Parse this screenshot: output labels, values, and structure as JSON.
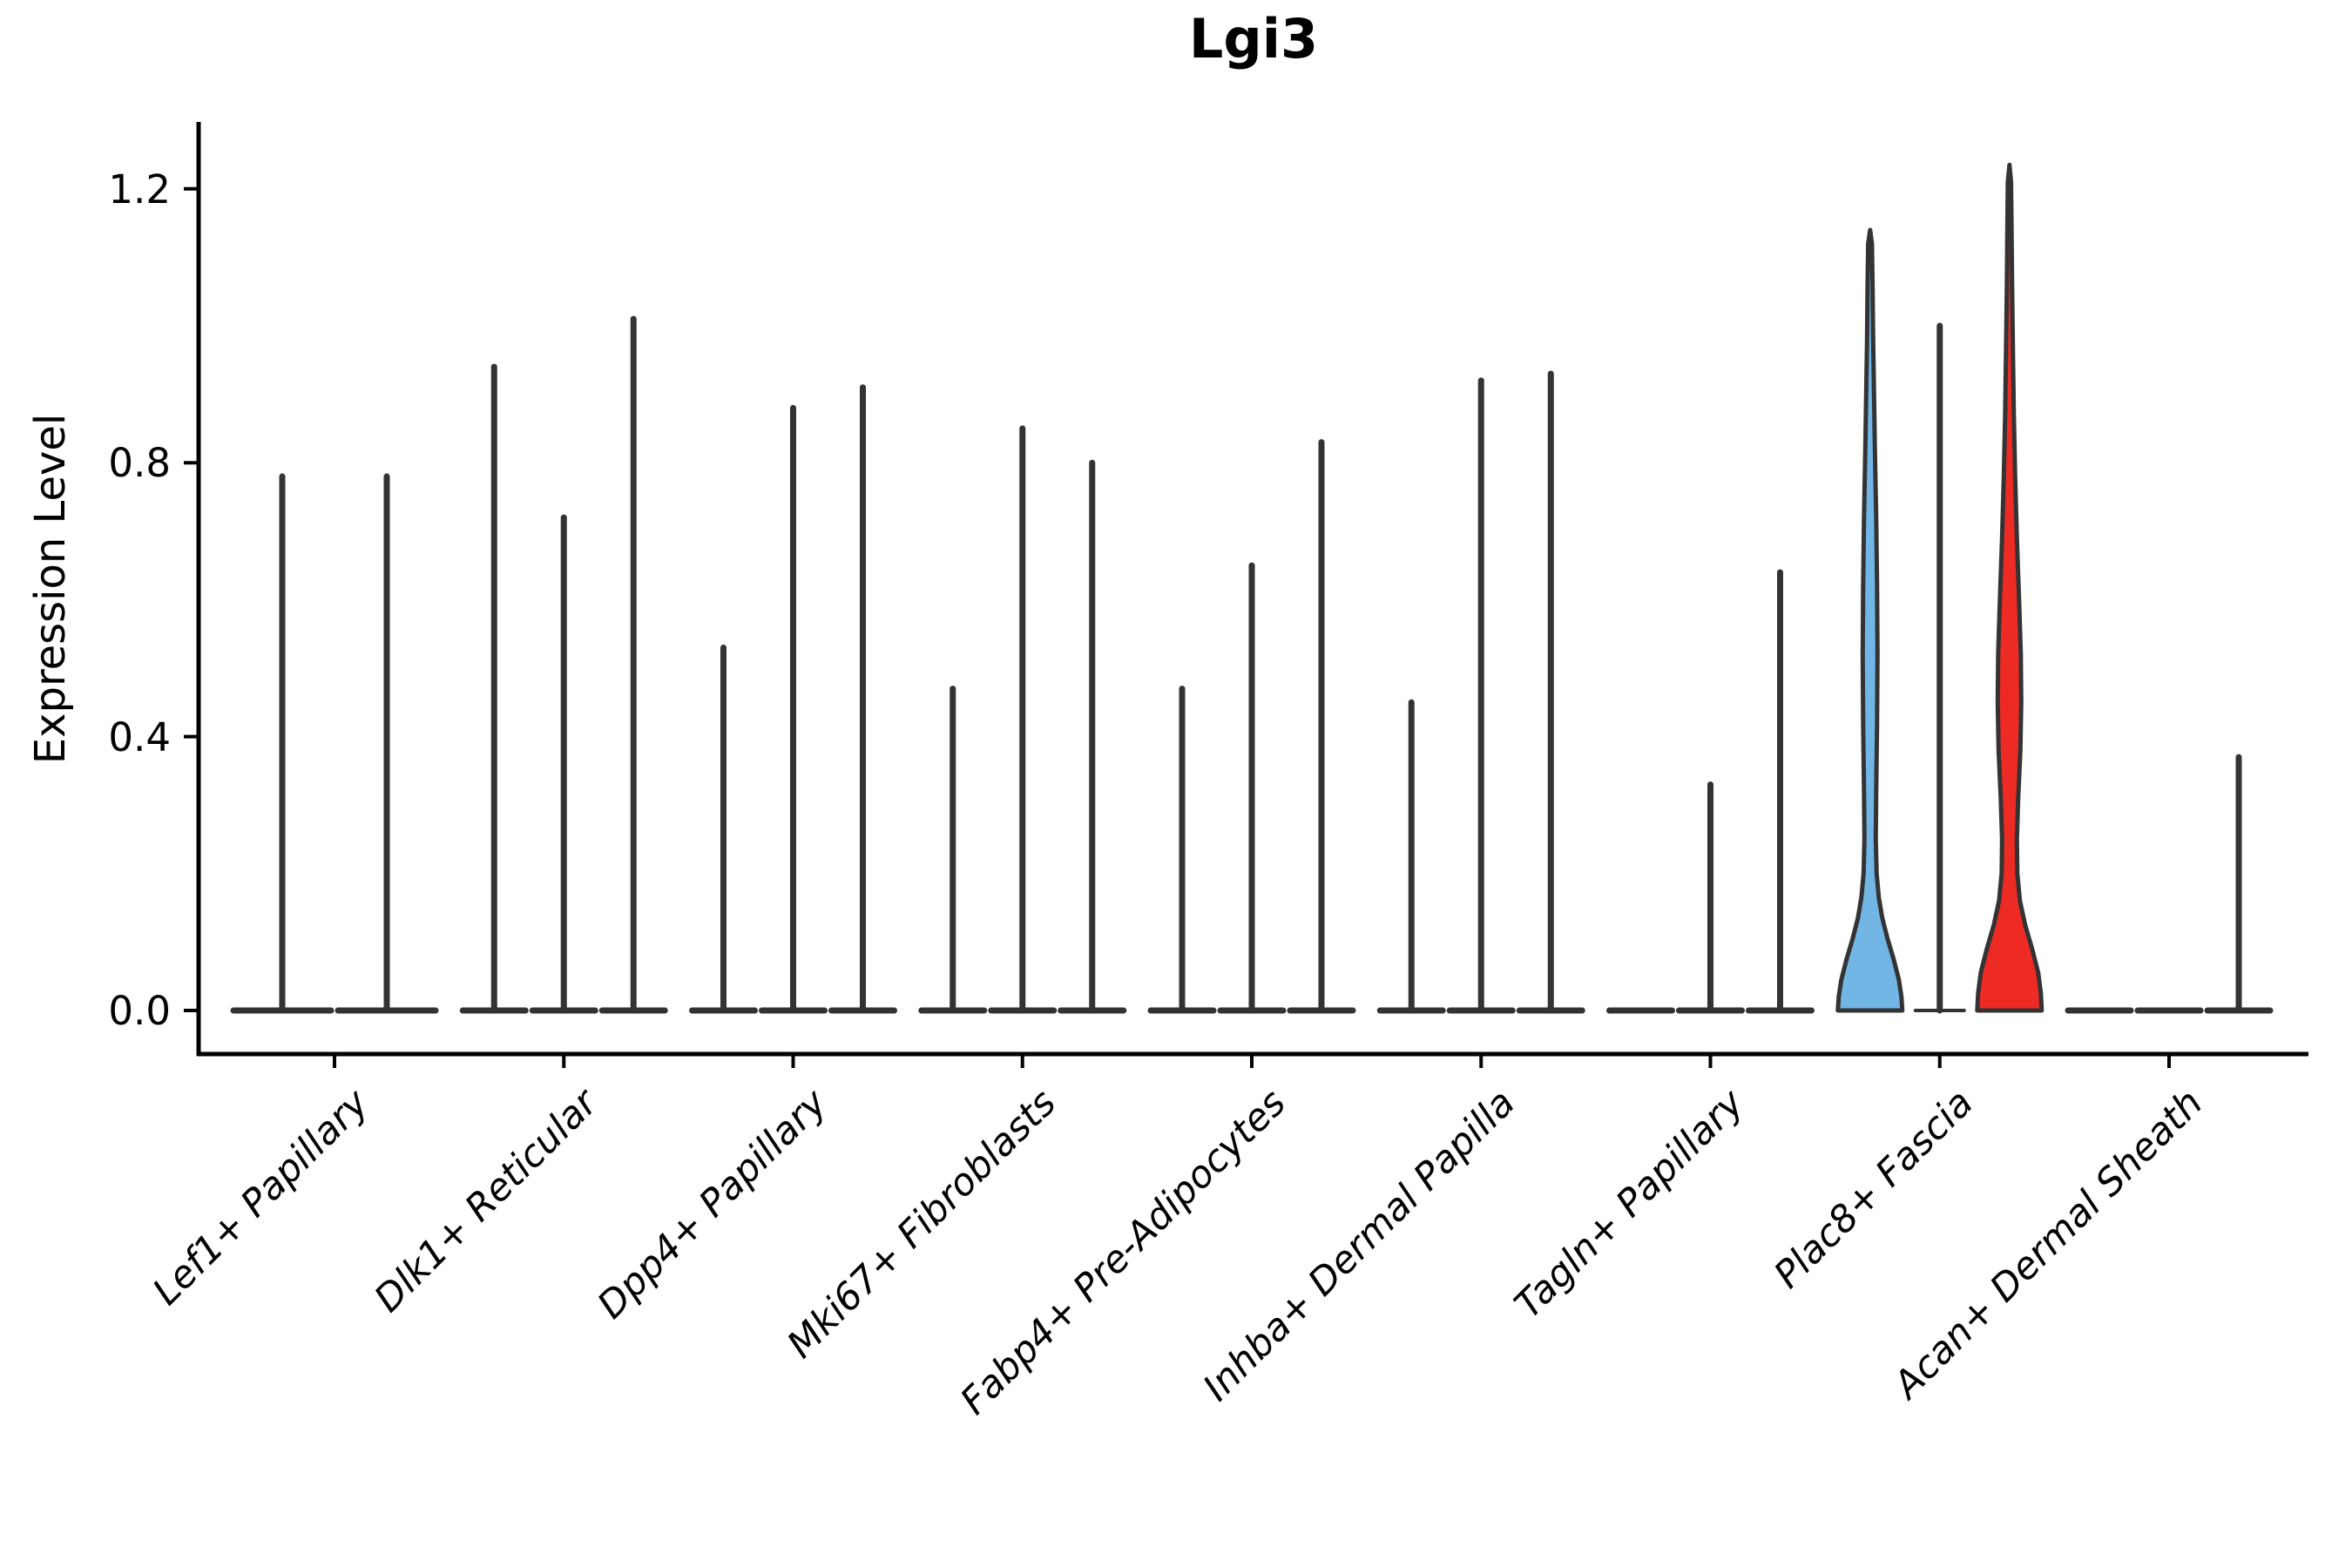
{
  "title": "Lgi3",
  "ylabel": "Expression Level",
  "chart_data": {
    "type": "violin",
    "title": "Lgi3",
    "xlabel": "",
    "ylabel": "Expression Level",
    "ylim": [
      0,
      1.25
    ],
    "yticks": [
      "0.0",
      "0.4",
      "0.8",
      "1.2"
    ],
    "ytick_values": [
      0.0,
      0.4,
      0.8,
      1.2
    ],
    "grid": false,
    "legend": "none",
    "x_label_angle_deg": 45,
    "x_label_style": "italic",
    "colors": {
      "highlight_blue": "#72B6E6",
      "highlight_red": "#EE2A25",
      "violin_outline": "#333333",
      "axis_spine": "#000000",
      "text": "#000000"
    },
    "categories": [
      "Lef1+ Papillary",
      "Dlk1+ Reticular",
      "Dpp4+ Papillary",
      "Mki67+ Fibroblasts",
      "Fabp4+ Pre-Adipocytes",
      "Inhba+ Dermal Papilla",
      "Tagln+ Papillary",
      "Plac8+ Fascia",
      "Acan+ Dermal Sheath"
    ],
    "groups": [
      {
        "category": "Lef1+ Papillary",
        "violins": [
          {
            "max": 0.78
          },
          {
            "max": 0.78
          }
        ]
      },
      {
        "category": "Dlk1+ Reticular",
        "violins": [
          {
            "max": 0.94
          },
          {
            "max": 0.72
          },
          {
            "max": 1.01
          }
        ]
      },
      {
        "category": "Dpp4+ Papillary",
        "violins": [
          {
            "max": 0.53
          },
          {
            "max": 0.88
          },
          {
            "max": 0.91
          }
        ]
      },
      {
        "category": "Mki67+ Fibroblasts",
        "violins": [
          {
            "max": 0.47
          },
          {
            "max": 0.85
          },
          {
            "max": 0.8
          }
        ]
      },
      {
        "category": "Fabp4+ Pre-Adipocytes",
        "violins": [
          {
            "max": 0.47
          },
          {
            "max": 0.65
          },
          {
            "max": 0.83
          }
        ]
      },
      {
        "category": "Inhba+ Dermal Papilla",
        "violins": [
          {
            "max": 0.45
          },
          {
            "max": 0.92
          },
          {
            "max": 0.93
          }
        ]
      },
      {
        "category": "Tagln+ Papillary",
        "violins": [
          {
            "max": 0.0
          },
          {
            "max": 0.33
          },
          {
            "max": 0.64
          }
        ]
      },
      {
        "category": "Plac8+ Fascia",
        "violins": [
          {
            "max": 1.14,
            "shape": "density",
            "fill": "#72B6E6",
            "profile": [
              [
                0.0,
                37
              ],
              [
                0.02,
                36
              ],
              [
                0.045,
                33
              ],
              [
                0.075,
                27
              ],
              [
                0.105,
                20
              ],
              [
                0.135,
                14
              ],
              [
                0.165,
                10
              ],
              [
                0.2,
                7.5
              ],
              [
                0.25,
                6.5
              ],
              [
                0.32,
                7
              ],
              [
                0.42,
                8
              ],
              [
                0.52,
                8.5
              ],
              [
                0.62,
                8
              ],
              [
                0.72,
                7
              ],
              [
                0.82,
                5.5
              ],
              [
                0.9,
                4.5
              ],
              [
                0.98,
                3.5
              ],
              [
                1.06,
                2.8
              ],
              [
                1.12,
                2.2
              ],
              [
                1.14,
                0
              ]
            ]
          },
          {
            "max": 1.0,
            "base": "thin"
          },
          {
            "max": 1.235,
            "shape": "density",
            "fill": "#EE2A25",
            "profile": [
              [
                0.0,
                37
              ],
              [
                0.025,
                36
              ],
              [
                0.055,
                33
              ],
              [
                0.09,
                26
              ],
              [
                0.125,
                18
              ],
              [
                0.16,
                12
              ],
              [
                0.2,
                9
              ],
              [
                0.25,
                8.5
              ],
              [
                0.31,
                10
              ],
              [
                0.38,
                12.5
              ],
              [
                0.45,
                13.5
              ],
              [
                0.52,
                13
              ],
              [
                0.6,
                11
              ],
              [
                0.69,
                8.5
              ],
              [
                0.78,
                6.5
              ],
              [
                0.87,
                5
              ],
              [
                0.96,
                4
              ],
              [
                1.06,
                3
              ],
              [
                1.15,
                2.3
              ],
              [
                1.21,
                1.8
              ],
              [
                1.235,
                0
              ]
            ]
          }
        ]
      },
      {
        "category": "Acan+ Dermal Sheath",
        "violins": [
          {
            "max": 0.0
          },
          {
            "max": 0.0
          },
          {
            "max": 0.37
          }
        ]
      }
    ]
  }
}
